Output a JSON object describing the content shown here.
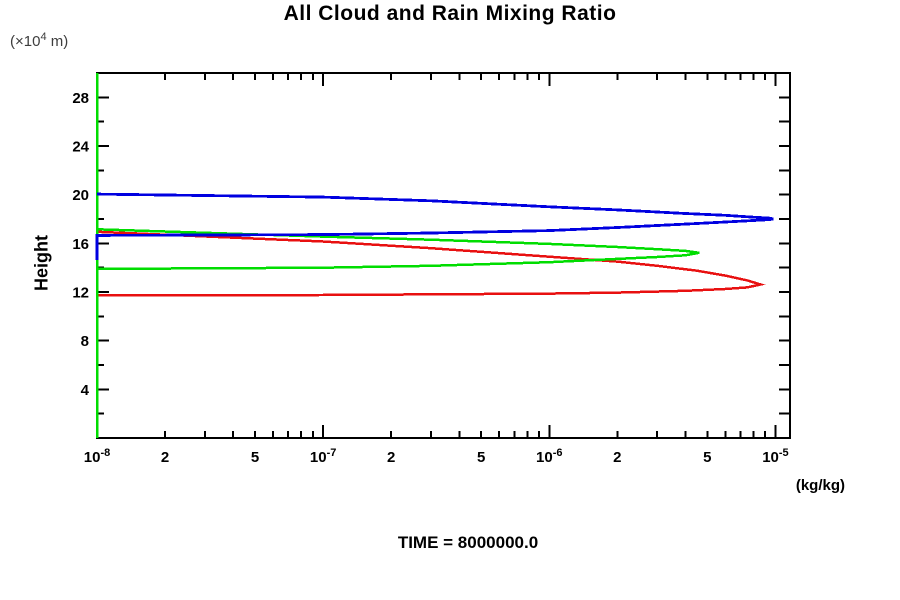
{
  "chart_data": {
    "type": "line",
    "title": "All Cloud and Rain Mixing Ratio",
    "time_annotation": "TIME = 8000000.0",
    "grid": false,
    "legend": false,
    "x_axis": {
      "scale": "log",
      "min": 1e-08,
      "max": 1.16e-05,
      "unit_label": "(kg/kg)",
      "tick_labels": [
        {
          "v": 1e-08,
          "base": "10",
          "sup": "-8"
        },
        {
          "v": 2e-08,
          "text": "2"
        },
        {
          "v": 5e-08,
          "text": "5"
        },
        {
          "v": 1e-07,
          "base": "10",
          "sup": "-7"
        },
        {
          "v": 2e-07,
          "text": "2"
        },
        {
          "v": 5e-07,
          "text": "5"
        },
        {
          "v": 1e-06,
          "base": "10",
          "sup": "-6"
        },
        {
          "v": 2e-06,
          "text": "2"
        },
        {
          "v": 5e-06,
          "text": "5"
        },
        {
          "v": 1e-05,
          "base": "10",
          "sup": "-5"
        }
      ],
      "decade_exponents": [
        -8,
        -7,
        -6,
        -5
      ],
      "minor_multiples": [
        2,
        3,
        4,
        5,
        6,
        7,
        8,
        9
      ]
    },
    "y_axis": {
      "min": 0,
      "max": 30,
      "label": "Height",
      "unit": {
        "pre": "(×10",
        "sup": "4",
        "post": " m)"
      },
      "major_ticks": [
        4,
        8,
        12,
        16,
        20,
        24,
        28
      ],
      "minor_ticks": [
        2,
        6,
        10,
        14,
        18,
        22,
        26
      ],
      "right_tick_step": 2
    },
    "series": [
      {
        "name": "red",
        "color": "#e81010",
        "width": 2.5,
        "paths": [
          [
            [
              1e-08,
              16.95
            ],
            [
              1e-07,
              16.15
            ],
            [
              3e-07,
              15.6
            ],
            [
              1e-06,
              14.9
            ],
            [
              2e-06,
              14.5
            ],
            [
              3e-06,
              14.15
            ],
            [
              4.5e-06,
              13.75
            ],
            [
              6e-06,
              13.35
            ],
            [
              7.5e-06,
              12.95
            ],
            [
              8.6e-06,
              12.62
            ],
            [
              7.5e-06,
              12.38
            ],
            [
              6e-06,
              12.25
            ],
            [
              4e-06,
              12.1
            ],
            [
              2e-06,
              11.95
            ],
            [
              1e-06,
              11.87
            ],
            [
              1e-07,
              11.75
            ],
            [
              1e-08,
              11.72
            ]
          ]
        ]
      },
      {
        "name": "green",
        "color": "#00dd00",
        "width": 2.5,
        "paths": [
          [
            [
              1e-08,
              30
            ],
            [
              1e-08,
              0
            ]
          ],
          [
            [
              1e-08,
              17.15
            ],
            [
              1e-07,
              16.55
            ],
            [
              3e-07,
              16.3
            ],
            [
              1e-06,
              15.95
            ],
            [
              2e-06,
              15.7
            ],
            [
              3e-06,
              15.52
            ],
            [
              4e-06,
              15.38
            ],
            [
              4.6e-06,
              15.22
            ],
            [
              4e-06,
              15.02
            ],
            [
              3e-06,
              14.88
            ],
            [
              2e-06,
              14.72
            ],
            [
              1e-06,
              14.45
            ],
            [
              3e-07,
              14.15
            ],
            [
              1e-07,
              14.0
            ],
            [
              1e-08,
              13.9
            ]
          ]
        ]
      },
      {
        "name": "blue",
        "color": "#0000e0",
        "width": 2.8,
        "paths": [
          [
            [
              1e-08,
              20.05
            ],
            [
              1e-07,
              19.8
            ],
            [
              3e-07,
              19.5
            ],
            [
              1e-06,
              19.0
            ],
            [
              2e-06,
              18.75
            ],
            [
              4e-06,
              18.45
            ],
            [
              6e-06,
              18.3
            ],
            [
              8e-06,
              18.15
            ],
            [
              9.4e-06,
              18.07
            ],
            [
              9.8e-06,
              18.0
            ],
            [
              9.4e-06,
              17.95
            ],
            [
              8e-06,
              17.88
            ],
            [
              6e-06,
              17.75
            ],
            [
              4e-06,
              17.58
            ],
            [
              2e-06,
              17.3
            ],
            [
              1e-06,
              17.05
            ],
            [
              3e-07,
              16.85
            ],
            [
              1e-07,
              16.72
            ],
            [
              1e-08,
              16.65
            ],
            [
              1e-08,
              14.65
            ]
          ]
        ]
      }
    ]
  },
  "colors": {
    "frame": "#000000",
    "tick_text": "#000000"
  }
}
